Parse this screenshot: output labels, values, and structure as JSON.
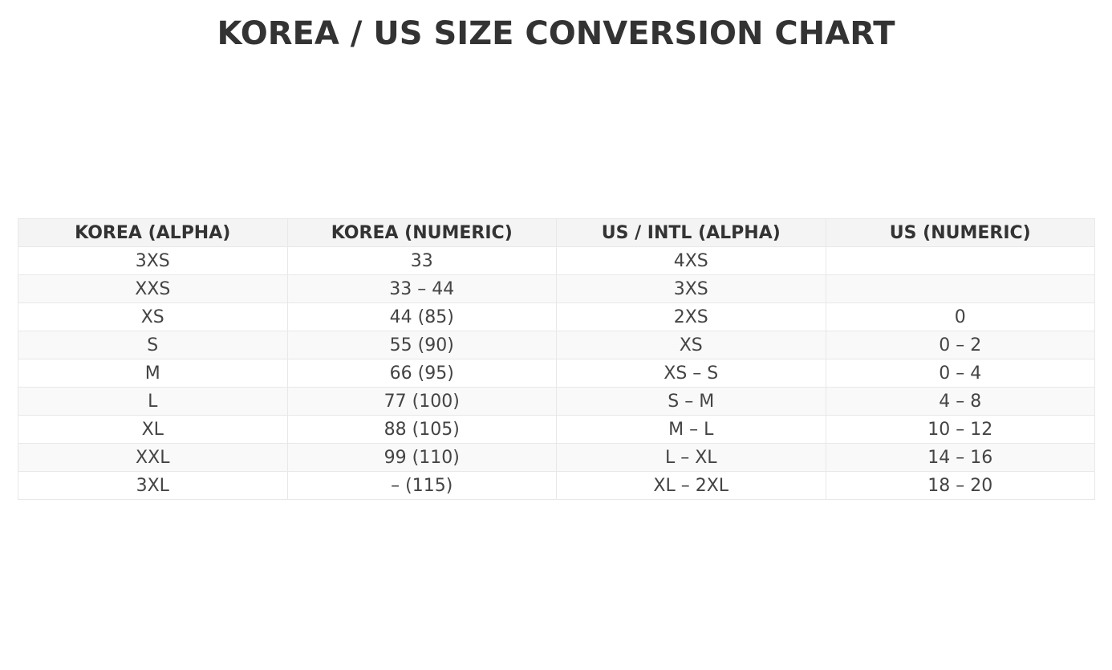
{
  "chart_data": {
    "type": "table",
    "title": "KOREA / US SIZE CONVERSION CHART",
    "columns": [
      "KOREA (ALPHA)",
      "KOREA (NUMERIC)",
      "US / INTL (ALPHA)",
      "US (NUMERIC)"
    ],
    "rows": [
      [
        "3XS",
        "33",
        "4XS",
        ""
      ],
      [
        "XXS",
        "33 – 44",
        "3XS",
        ""
      ],
      [
        "XS",
        "44 (85)",
        "2XS",
        "0"
      ],
      [
        "S",
        "55 (90)",
        "XS",
        "0 – 2"
      ],
      [
        "M",
        "66 (95)",
        "XS – S",
        "0 – 4"
      ],
      [
        "L",
        "77 (100)",
        "S – M",
        "4 – 8"
      ],
      [
        "XL",
        "88 (105)",
        "M – L",
        "10 – 12"
      ],
      [
        "XXL",
        "99 (110)",
        "L – XL",
        "14 – 16"
      ],
      [
        "3XL",
        "– (115)",
        "XL – 2XL",
        "18 – 20"
      ]
    ]
  }
}
